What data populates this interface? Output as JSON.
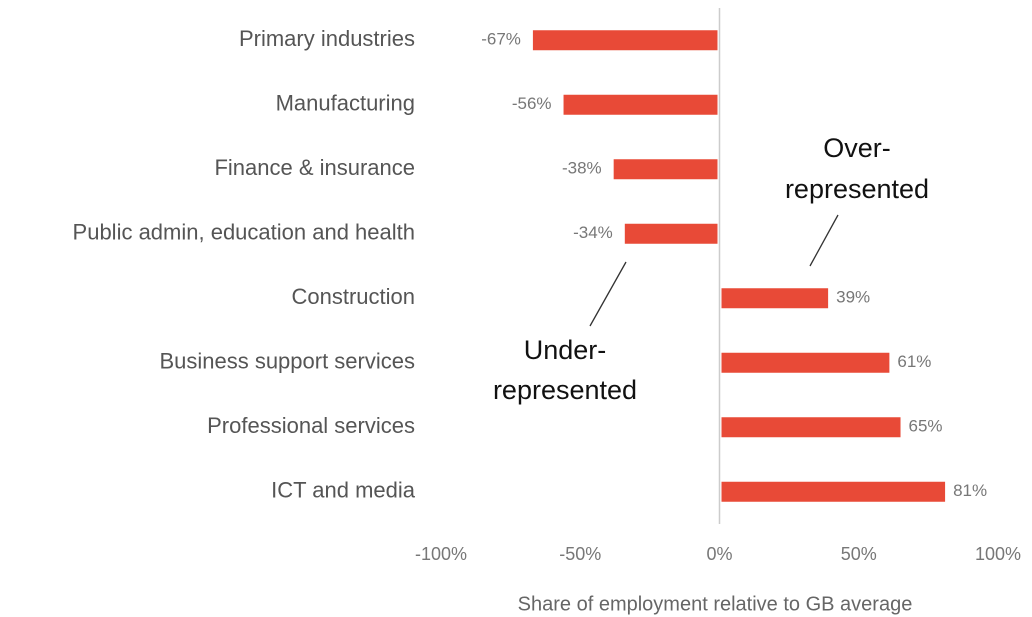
{
  "chart_data": {
    "type": "bar",
    "orientation": "horizontal",
    "categories": [
      "Primary industries",
      "Manufacturing",
      "Finance & insurance",
      "Public admin, education and health",
      "Construction",
      "Business support services",
      "Professional services",
      "ICT and media"
    ],
    "values": [
      -67,
      -56,
      -38,
      -34,
      39,
      61,
      65,
      81
    ],
    "value_labels": [
      "-67%",
      "-56%",
      "-38%",
      "-34%",
      "39%",
      "61%",
      "65%",
      "81%"
    ],
    "color": "#e84a37",
    "xlim": [
      -100,
      100
    ],
    "xticks": [
      {
        "value": -100,
        "label": "-100%"
      },
      {
        "value": -50,
        "label": "-50%"
      },
      {
        "value": 0,
        "label": "0%"
      },
      {
        "value": 50,
        "label": "50%"
      },
      {
        "value": 100,
        "label": "100%"
      }
    ],
    "xlabel": "Share of employment relative to GB average",
    "annotations": [
      [
        "Over-",
        "represented"
      ],
      [
        "Under-",
        "represented"
      ]
    ],
    "grid": false
  }
}
